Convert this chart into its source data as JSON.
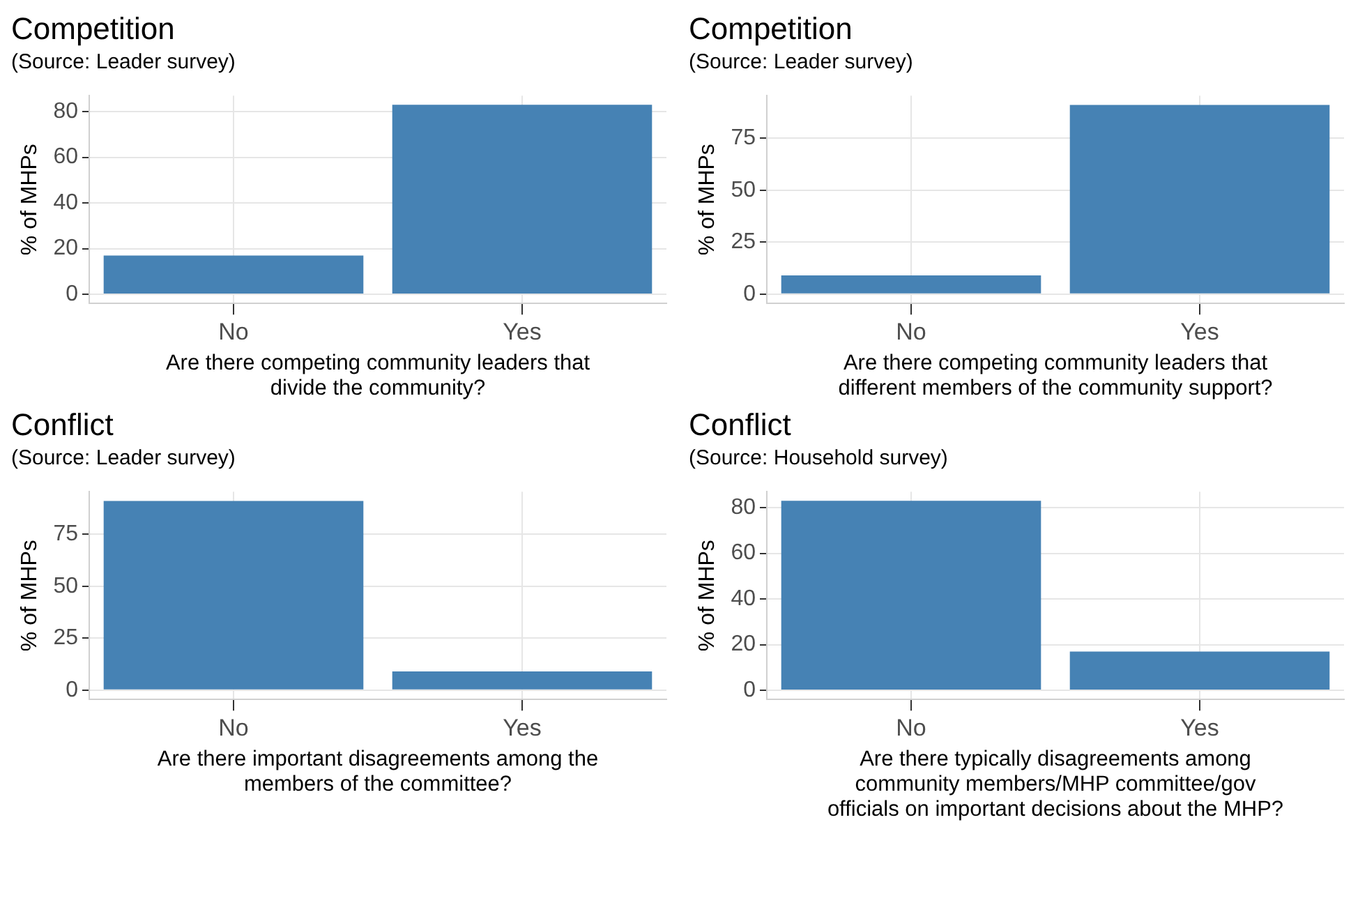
{
  "chart_data": [
    {
      "type": "bar",
      "title": "Competition",
      "subtitle": "(Source: Leader survey)",
      "xlabel": "Are there competing community leaders that divide the community?",
      "ylabel": "% of MHPs",
      "categories": [
        "No",
        "Yes"
      ],
      "values": [
        17,
        83
      ],
      "color": "#4682b4",
      "ylim": [
        -4,
        87
      ],
      "yticks": [
        0,
        20,
        40,
        60,
        80
      ],
      "grid": true
    },
    {
      "type": "bar",
      "title": "Competition",
      "subtitle": "(Source: Leader survey)",
      "xlabel": "Are there competing community leaders that different members of the community support?",
      "ylabel": "% of MHPs",
      "categories": [
        "No",
        "Yes"
      ],
      "values": [
        9,
        91
      ],
      "color": "#4682b4",
      "ylim": [
        -4.5,
        95.5
      ],
      "yticks": [
        0,
        25,
        50,
        75
      ],
      "grid": true
    },
    {
      "type": "bar",
      "title": "Conflict",
      "subtitle": "(Source: Leader survey)",
      "xlabel": "Are there important disagreements among the members of the committee?",
      "ylabel": "% of MHPs",
      "categories": [
        "No",
        "Yes"
      ],
      "values": [
        91,
        9
      ],
      "color": "#4682b4",
      "ylim": [
        -4.5,
        95.5
      ],
      "yticks": [
        0,
        25,
        50,
        75
      ],
      "grid": true
    },
    {
      "type": "bar",
      "title": "Conflict",
      "subtitle": "(Source: Household survey)",
      "xlabel": "Are there typically disagreements among community members/MHP committee/gov officials on important decisions about the MHP?",
      "ylabel": "% of MHPs",
      "categories": [
        "No",
        "Yes"
      ],
      "values": [
        83,
        17
      ],
      "color": "#4682b4",
      "ylim": [
        -4,
        87
      ],
      "yticks": [
        0,
        20,
        40,
        60,
        80
      ],
      "grid": true
    }
  ]
}
